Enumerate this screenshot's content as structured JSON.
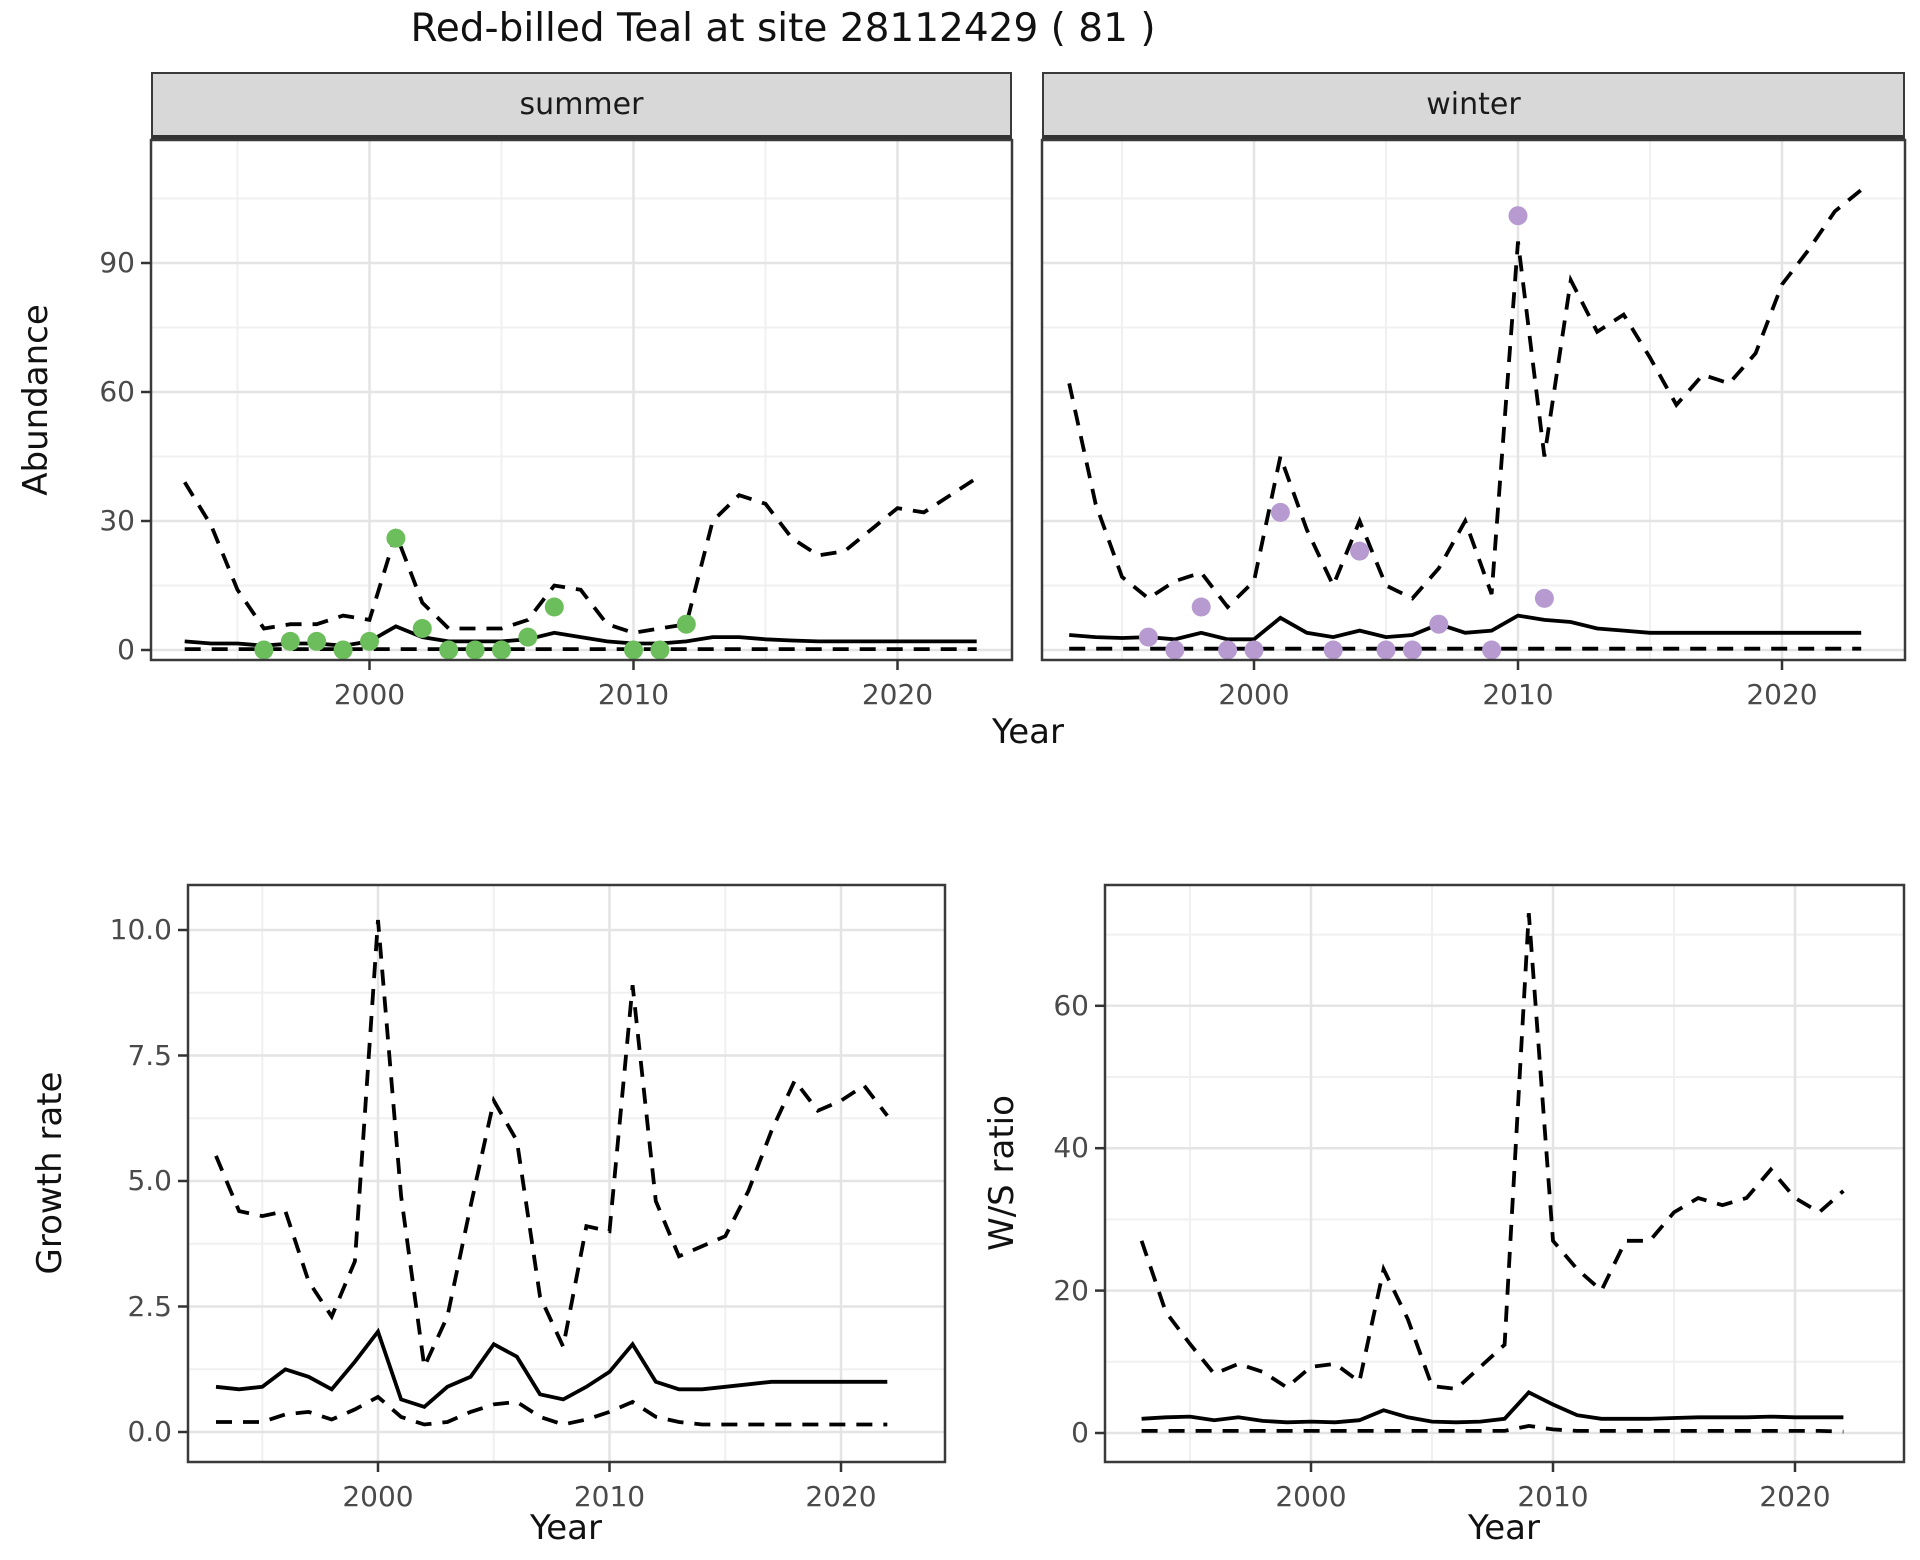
{
  "title": "Red-billed Teal at site 28112429 ( 81 )",
  "colors": {
    "summer_points": "#6CBE5C",
    "winter_points": "#B79AD0",
    "line": "#000000",
    "grid_major": "#E4E4E4",
    "grid_minor": "#F0F0F0",
    "strip_bg": "#D8D8D8",
    "tick_text": "#4a4a4a"
  },
  "chart_data": {
    "type": "line",
    "xlabel": "Year",
    "legend": "none",
    "panels": [
      {
        "facet": "summer",
        "ylabel": "Abundance",
        "x": [
          1993,
          1994,
          1995,
          1996,
          1997,
          1998,
          1999,
          2000,
          2001,
          2002,
          2003,
          2004,
          2005,
          2006,
          2007,
          2008,
          2009,
          2010,
          2011,
          2012,
          2013,
          2014,
          2015,
          2016,
          2017,
          2018,
          2019,
          2020,
          2021,
          2022,
          2023
        ],
        "series": [
          {
            "name": "upper_95ci",
            "style": "dashed",
            "values": [
              39,
              29,
              14,
              5,
              6,
              6,
              8,
              7,
              27,
              11,
              5,
              5,
              5,
              7,
              15,
              14,
              6,
              4,
              5,
              6,
              30,
              36,
              34,
              26,
              22,
              23,
              28,
              33,
              32,
              36,
              40
            ]
          },
          {
            "name": "median",
            "style": "solid",
            "values": [
              2,
              1.5,
              1.5,
              1,
              1.5,
              1.5,
              1,
              2,
              5.5,
              3,
              2,
              2,
              2,
              2.5,
              4,
              3,
              2,
              1.5,
              1.5,
              2,
              3,
              3,
              2.5,
              2.2,
              2,
              2,
              2,
              2,
              2,
              2,
              2
            ]
          },
          {
            "name": "lower_95ci",
            "style": "dashed",
            "values": [
              0.2,
              0.2,
              0.2,
              0.2,
              0.2,
              0.2,
              0.2,
              0.2,
              0.2,
              0.2,
              0.2,
              0.2,
              0.2,
              0.2,
              0.2,
              0.2,
              0.2,
              0.2,
              0.2,
              0.2,
              0.2,
              0.2,
              0.2,
              0.2,
              0.2,
              0.2,
              0.2,
              0.2,
              0.2,
              0.2,
              0.2
            ]
          }
        ],
        "points": {
          "name": "observed_counts",
          "color_key": "summer_points",
          "years": [
            1996,
            1997,
            1998,
            1999,
            2000,
            2001,
            2002,
            2003,
            2004,
            2005,
            2006,
            2007,
            2010,
            2011,
            2012
          ],
          "values": [
            0,
            2,
            2,
            0,
            2,
            26,
            5,
            0,
            0,
            0,
            3,
            10,
            0,
            0,
            6
          ]
        },
        "ylim": [
          -2.3,
          118.6
        ],
        "yticks": {
          "values": [
            0,
            30,
            60,
            90
          ],
          "labels": [
            "0",
            "30",
            "60",
            "90"
          ]
        },
        "xticks": {
          "values": [
            2000,
            2010,
            2020
          ],
          "labels": [
            "2000",
            "2010",
            "2020"
          ]
        }
      },
      {
        "facet": "winter",
        "ylabel": "Abundance",
        "x": [
          1993,
          1994,
          1995,
          1996,
          1997,
          1998,
          1999,
          2000,
          2001,
          2002,
          2003,
          2004,
          2005,
          2006,
          2007,
          2008,
          2009,
          2010,
          2011,
          2012,
          2013,
          2014,
          2015,
          2016,
          2017,
          2018,
          2019,
          2020,
          2021,
          2022,
          2023
        ],
        "series": [
          {
            "name": "upper_95ci",
            "style": "dashed",
            "values": [
              62,
              34,
              17,
              12,
              16,
              18,
              10,
              16,
              45,
              28,
              15,
              30,
              15,
              12,
              19,
              30,
              13,
              95,
              45,
              86,
              74,
              78,
              68,
              57,
              64,
              62,
              69,
              85,
              93,
              102,
              107
            ]
          },
          {
            "name": "median",
            "style": "solid",
            "values": [
              3.5,
              3,
              2.8,
              3,
              2.5,
              4,
              2.5,
              2.5,
              7.5,
              4,
              3,
              4.5,
              3,
              3.5,
              6,
              4,
              4.5,
              8,
              7,
              6.5,
              5,
              4.5,
              4,
              4,
              4,
              4,
              4,
              4,
              4,
              4,
              4
            ]
          },
          {
            "name": "lower_95ci",
            "style": "dashed",
            "values": [
              0.3,
              0.3,
              0.3,
              0.3,
              0.3,
              0.3,
              0.3,
              0.3,
              0.3,
              0.3,
              0.3,
              0.3,
              0.3,
              0.3,
              0.3,
              0.3,
              0.3,
              0.3,
              0.3,
              0.3,
              0.3,
              0.3,
              0.3,
              0.3,
              0.3,
              0.3,
              0.3,
              0.3,
              0.3,
              0.3,
              0.3
            ]
          }
        ],
        "points": {
          "name": "observed_counts",
          "color_key": "winter_points",
          "years": [
            1996,
            1997,
            1998,
            1999,
            2000,
            2001,
            2003,
            2004,
            2005,
            2006,
            2007,
            2009,
            2010,
            2011
          ],
          "values": [
            3,
            0,
            10,
            0,
            0,
            32,
            0,
            23,
            0,
            0,
            6,
            0,
            101,
            12
          ]
        },
        "ylim": [
          -2.3,
          118.6
        ],
        "yticks": {
          "values": [
            0,
            30,
            60,
            90
          ],
          "labels": [
            "0",
            "30",
            "60",
            "90"
          ]
        },
        "xticks": {
          "values": [
            2000,
            2010,
            2020
          ],
          "labels": [
            "2000",
            "2010",
            "2020"
          ]
        }
      },
      {
        "facet": null,
        "ylabel": "Growth rate",
        "x": [
          1993,
          1994,
          1995,
          1996,
          1997,
          1998,
          1999,
          2000,
          2001,
          2002,
          2003,
          2004,
          2005,
          2006,
          2007,
          2008,
          2009,
          2010,
          2011,
          2012,
          2013,
          2014,
          2015,
          2016,
          2017,
          2018,
          2019,
          2020,
          2021,
          2022
        ],
        "series": [
          {
            "name": "upper_95ci",
            "style": "dashed",
            "values": [
              5.5,
              4.4,
              4.3,
              4.4,
              3.0,
              2.3,
              3.4,
              10.2,
              4.7,
              1.3,
              2.3,
              4.5,
              6.6,
              5.8,
              2.7,
              1.7,
              4.1,
              4.0,
              8.9,
              4.6,
              3.5,
              3.7,
              3.9,
              4.8,
              6.0,
              7.0,
              6.4,
              6.6,
              6.9,
              6.3
            ]
          },
          {
            "name": "median",
            "style": "solid",
            "values": [
              0.9,
              0.85,
              0.9,
              1.25,
              1.1,
              0.85,
              1.4,
              2.0,
              0.65,
              0.5,
              0.9,
              1.1,
              1.75,
              1.5,
              0.75,
              0.65,
              0.9,
              1.2,
              1.75,
              1.0,
              0.85,
              0.85,
              0.9,
              0.95,
              1.0,
              1.0,
              1.0,
              1.0,
              1.0,
              1.0
            ]
          },
          {
            "name": "lower_95ci",
            "style": "dashed",
            "values": [
              0.2,
              0.2,
              0.2,
              0.35,
              0.4,
              0.25,
              0.45,
              0.7,
              0.3,
              0.15,
              0.2,
              0.4,
              0.55,
              0.6,
              0.3,
              0.15,
              0.25,
              0.4,
              0.6,
              0.3,
              0.2,
              0.15,
              0.15,
              0.15,
              0.15,
              0.15,
              0.15,
              0.15,
              0.15,
              0.15
            ]
          }
        ],
        "points": null,
        "ylim": [
          -0.6,
          10.9
        ],
        "yticks": {
          "values": [
            0,
            2.5,
            5,
            7.5,
            10
          ],
          "labels": [
            "0.0",
            "2.5",
            "5.0",
            "7.5",
            "10.0"
          ]
        },
        "xticks": {
          "values": [
            2000,
            2010,
            2020
          ],
          "labels": [
            "2000",
            "2010",
            "2020"
          ]
        }
      },
      {
        "facet": null,
        "ylabel": "W/S ratio",
        "x": [
          1993,
          1994,
          1995,
          1996,
          1997,
          1998,
          1999,
          2000,
          2001,
          2002,
          2003,
          2004,
          2005,
          2006,
          2007,
          2008,
          2009,
          2010,
          2011,
          2012,
          2013,
          2014,
          2015,
          2016,
          2017,
          2018,
          2019,
          2020,
          2021,
          2022
        ],
        "series": [
          {
            "name": "upper_95ci",
            "style": "dashed",
            "values": [
              27,
              17,
              12.5,
              8.3,
              9.7,
              8.6,
              6.4,
              9.3,
              9.7,
              7.2,
              23,
              16,
              6.6,
              6.2,
              9.3,
              12.4,
              73,
              27,
              23,
              20,
              27,
              27,
              31,
              33,
              32,
              33,
              37,
              33,
              31,
              34
            ]
          },
          {
            "name": "median",
            "style": "solid",
            "values": [
              2,
              2.2,
              2.3,
              1.8,
              2.2,
              1.7,
              1.5,
              1.6,
              1.5,
              1.8,
              3.2,
              2.2,
              1.6,
              1.5,
              1.6,
              2.0,
              5.7,
              4.0,
              2.5,
              2.0,
              2.0,
              2.0,
              2.1,
              2.2,
              2.2,
              2.2,
              2.3,
              2.2,
              2.2,
              2.2
            ]
          },
          {
            "name": "lower_95ci",
            "style": "dashed",
            "values": [
              0.3,
              0.3,
              0.3,
              0.3,
              0.3,
              0.3,
              0.3,
              0.3,
              0.3,
              0.3,
              0.3,
              0.3,
              0.3,
              0.3,
              0.3,
              0.3,
              1.0,
              0.5,
              0.3,
              0.3,
              0.3,
              0.3,
              0.3,
              0.3,
              0.3,
              0.3,
              0.3,
              0.3,
              0.3,
              0.2
            ]
          }
        ],
        "points": null,
        "ylim": [
          -4.1,
          77
        ],
        "yticks": {
          "values": [
            0,
            20,
            40,
            60
          ],
          "labels": [
            "0",
            "20",
            "40",
            "60"
          ]
        },
        "xticks": {
          "values": [
            2000,
            2010,
            2020
          ],
          "labels": [
            "2000",
            "2010",
            "2020"
          ]
        }
      }
    ]
  }
}
